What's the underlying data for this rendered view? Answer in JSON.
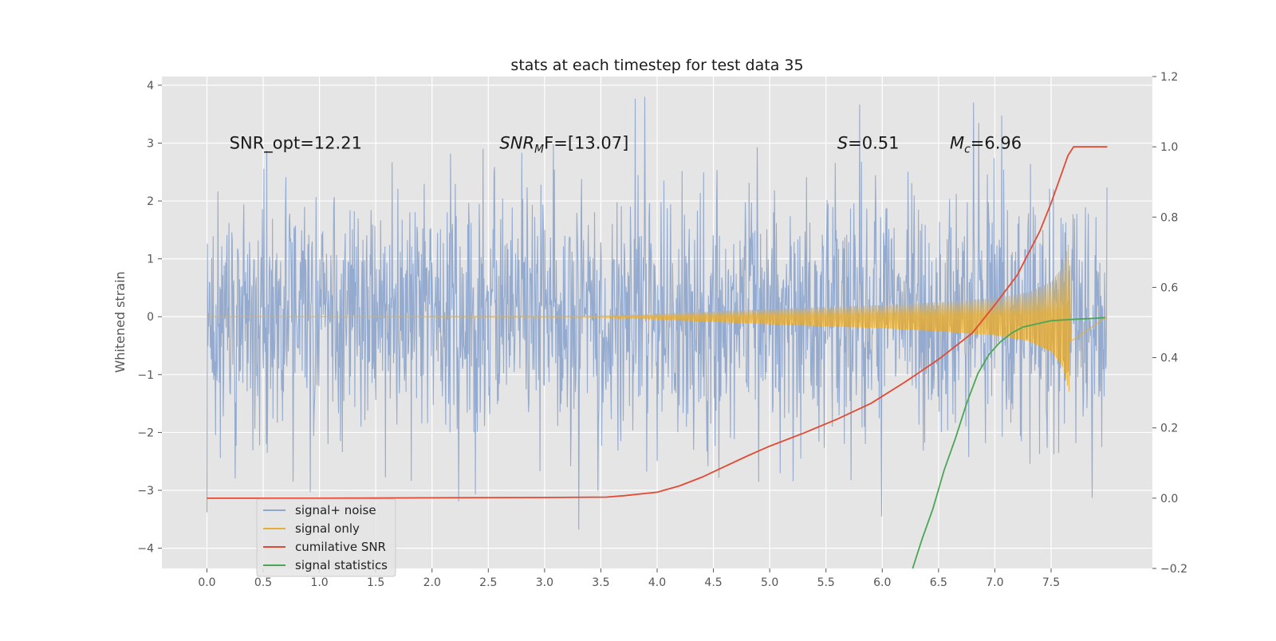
{
  "chart_data": {
    "type": "line",
    "title": "stats at each timestep for test data 35",
    "ylabel": "Whitened strain",
    "xlim": [
      -0.4,
      8.4
    ],
    "ylim": [
      -4.35,
      4.15
    ],
    "y2lim": [
      -0.2,
      1.2
    ],
    "xticks": [
      0.0,
      0.5,
      1.0,
      1.5,
      2.0,
      2.5,
      3.0,
      3.5,
      4.0,
      4.5,
      5.0,
      5.5,
      6.0,
      6.5,
      7.0,
      7.5
    ],
    "xtick_labels": [
      "0.0",
      "0.5",
      "1.0",
      "1.5",
      "2.0",
      "2.5",
      "3.0",
      "3.5",
      "4.0",
      "4.5",
      "5.0",
      "5.5",
      "6.0",
      "6.5",
      "7.0",
      "7.5"
    ],
    "yticks": [
      -4,
      -3,
      -2,
      -1,
      0,
      1,
      2,
      3,
      4
    ],
    "ytick_labels": [
      "−4",
      "−3",
      "−2",
      "−1",
      "0",
      "1",
      "2",
      "3",
      "4"
    ],
    "y2ticks": [
      -0.2,
      0.0,
      0.2,
      0.4,
      0.6,
      0.8,
      1.0,
      1.2
    ],
    "y2tick_labels": [
      "−0.2",
      "0.0",
      "0.2",
      "0.4",
      "0.6",
      "0.8",
      "1.0",
      "1.2"
    ],
    "grid": true,
    "legend_position": "lower-left",
    "annotations": [
      {
        "text": "SNR_opt=12.21",
        "x": 0.2,
        "y": 3.0
      },
      {
        "main": "SNR",
        "sub": "M",
        "rest": "F=[13.07]",
        "x": 2.6,
        "y": 3.0
      },
      {
        "main": "S",
        "sub": "",
        "rest": "=0.51",
        "x": 5.6,
        "y": 3.0
      },
      {
        "main": "M",
        "sub": "c",
        "rest": "=6.96",
        "x": 6.6,
        "y": 3.0
      }
    ],
    "series": [
      {
        "name": "signal+ noise",
        "axis": "left",
        "color": "#8fa7cc",
        "x_range": [
          0.0,
          8.0
        ],
        "amplitude_typical": 1.8,
        "amplitude_max": 3.8
      },
      {
        "name": "signal only",
        "axis": "left",
        "color": "#e5ae38",
        "envelope": {
          "x": [
            0.0,
            3.5,
            4.0,
            5.0,
            6.0,
            6.5,
            7.0,
            7.3,
            7.5,
            7.6,
            7.66,
            7.68,
            8.0
          ],
          "y": [
            0.0,
            0.01,
            0.05,
            0.13,
            0.2,
            0.25,
            0.32,
            0.42,
            0.6,
            0.85,
            1.3,
            0.0,
            0.0
          ]
        }
      },
      {
        "name": "cumilative SNR",
        "axis": "right",
        "color": "#e24a33",
        "x": [
          0.0,
          1.0,
          2.0,
          3.0,
          3.55,
          3.7,
          4.0,
          4.2,
          4.4,
          4.6,
          4.8,
          5.0,
          5.3,
          5.6,
          5.9,
          6.2,
          6.5,
          6.8,
          7.0,
          7.2,
          7.4,
          7.5,
          7.6,
          7.65,
          7.7,
          7.8,
          8.0
        ],
        "y": [
          0.0,
          0.0,
          0.001,
          0.002,
          0.003,
          0.007,
          0.017,
          0.035,
          0.06,
          0.09,
          0.12,
          0.148,
          0.185,
          0.225,
          0.27,
          0.33,
          0.395,
          0.47,
          0.55,
          0.635,
          0.76,
          0.84,
          0.93,
          0.975,
          1.0,
          1.0,
          1.0
        ]
      },
      {
        "name": "signal statistics",
        "axis": "right",
        "color": "#4aa657",
        "x": [
          6.27,
          6.35,
          6.45,
          6.55,
          6.65,
          6.75,
          6.85,
          6.95,
          7.05,
          7.15,
          7.25,
          7.4,
          7.5,
          7.6,
          7.75,
          7.9,
          7.98
        ],
        "y": [
          -0.2,
          -0.12,
          -0.03,
          0.08,
          0.17,
          0.27,
          0.355,
          0.41,
          0.445,
          0.47,
          0.487,
          0.498,
          0.505,
          0.507,
          0.51,
          0.512,
          0.514
        ]
      }
    ]
  }
}
